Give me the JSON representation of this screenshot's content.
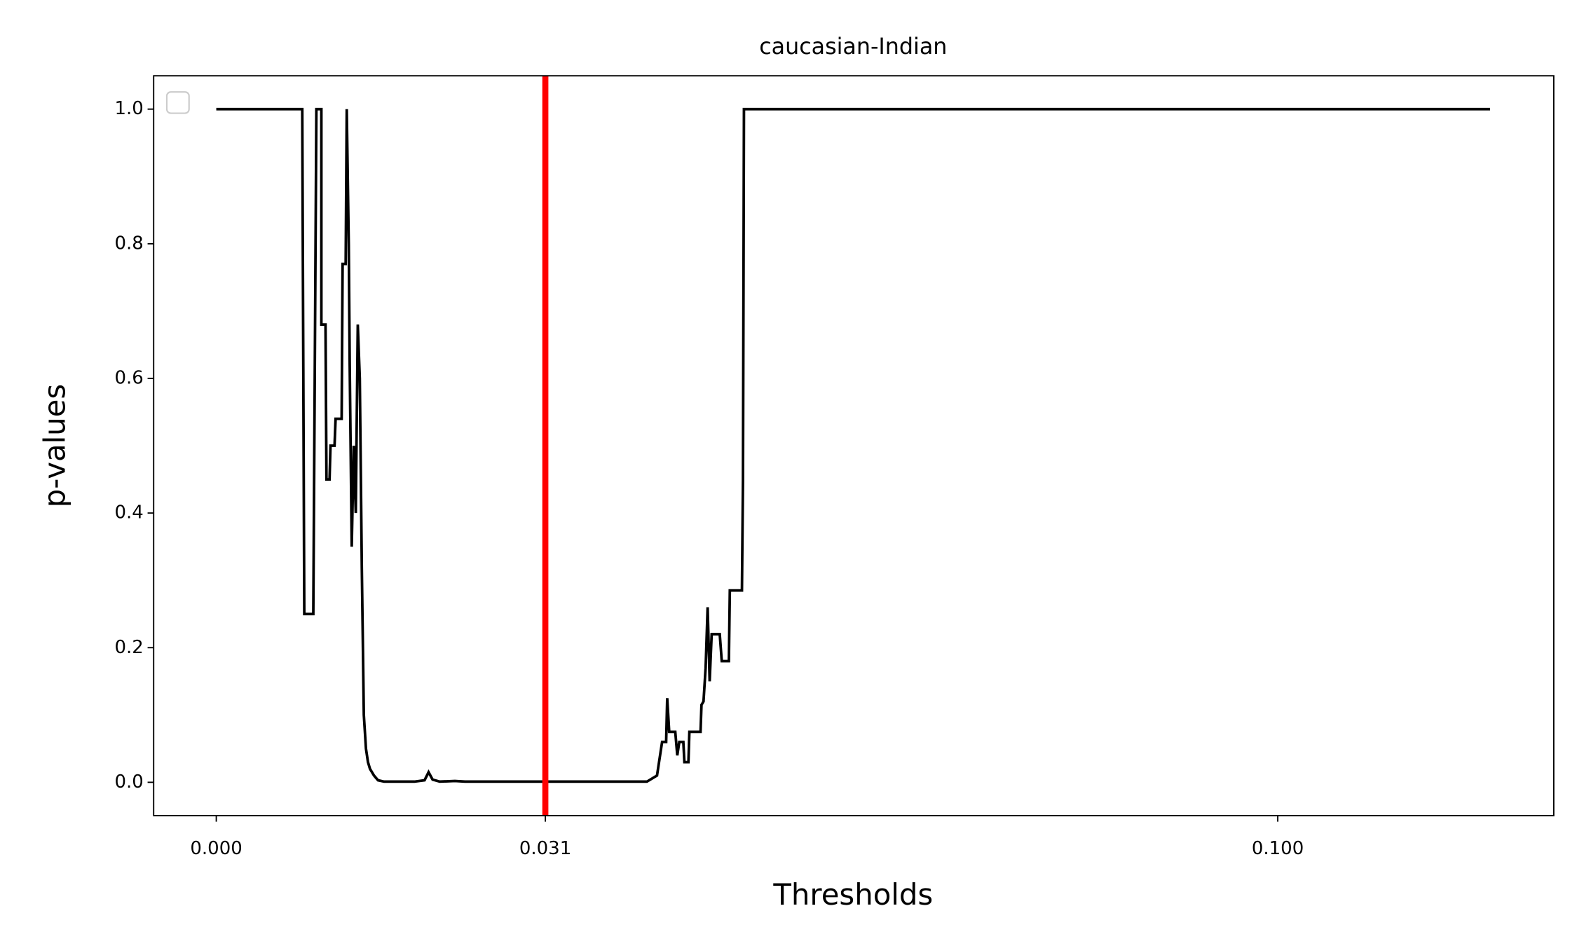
{
  "chart_data": {
    "type": "line",
    "title": "caucasian-Indian",
    "x_label": "Thresholds",
    "y_label": "p-values",
    "xlim": [
      -0.0059,
      0.126
    ],
    "ylim": [
      -0.0495,
      1.0495
    ],
    "xticks": [
      {
        "value": 0,
        "label": "0.000"
      },
      0.031,
      {
        "value": 0.1,
        "label": "0.100"
      }
    ],
    "yticks": [
      {
        "value": 0,
        "label": "0.0"
      },
      0.2,
      0.4,
      0.6,
      0.8,
      {
        "value": 1,
        "label": "1.0"
      }
    ],
    "grid": false,
    "legend": "upper left",
    "vline": {
      "x": 0.031,
      "color": "#ff0000"
    },
    "series": [
      {
        "color": "#000000",
        "x": [
          0,
          0.0081,
          0.00829,
          0.00914,
          0.00943,
          0.0099,
          0.0099,
          0.01029,
          0.01038,
          0.01067,
          0.01076,
          0.01114,
          0.01124,
          0.01181,
          0.0119,
          0.01219,
          0.01229,
          0.01248,
          0.01257,
          0.01276,
          0.01295,
          0.01314,
          0.01333,
          0.01352,
          0.01371,
          0.0139,
          0.0141,
          0.01429,
          0.01448,
          0.01486,
          0.01524,
          0.01581,
          0.01867,
          0.01962,
          0.02,
          0.02038,
          0.02105,
          0.02248,
          0.02343,
          0.04057,
          0.04152,
          0.042,
          0.04238,
          0.04248,
          0.04267,
          0.04324,
          0.04343,
          0.04362,
          0.044,
          0.0441,
          0.04448,
          0.04457,
          0.04562,
          0.04571,
          0.0459,
          0.0461,
          0.04629,
          0.04648,
          0.04667,
          0.04743,
          0.04762,
          0.04829,
          0.04838,
          0.04952,
          0.04962,
          0.04971,
          0.12
        ],
        "values": [
          1,
          1,
          0.25,
          0.25,
          1,
          1,
          0.68,
          0.68,
          0.45,
          0.45,
          0.5,
          0.5,
          0.54,
          0.54,
          0.77,
          0.77,
          1,
          0.8,
          0.62,
          0.35,
          0.5,
          0.4,
          0.68,
          0.6,
          0.32,
          0.1,
          0.05,
          0.03,
          0.02,
          0.01,
          0.003,
          0.001,
          0.001,
          0.003,
          0.015,
          0.004,
          0.001,
          0.002,
          0.001,
          0.001,
          0.01,
          0.06,
          0.06,
          0.125,
          0.075,
          0.075,
          0.04,
          0.06,
          0.06,
          0.03,
          0.03,
          0.075,
          0.075,
          0.115,
          0.12,
          0.17,
          0.26,
          0.15,
          0.22,
          0.22,
          0.18,
          0.18,
          0.285,
          0.285,
          0.45,
          1,
          1
        ]
      }
    ]
  }
}
